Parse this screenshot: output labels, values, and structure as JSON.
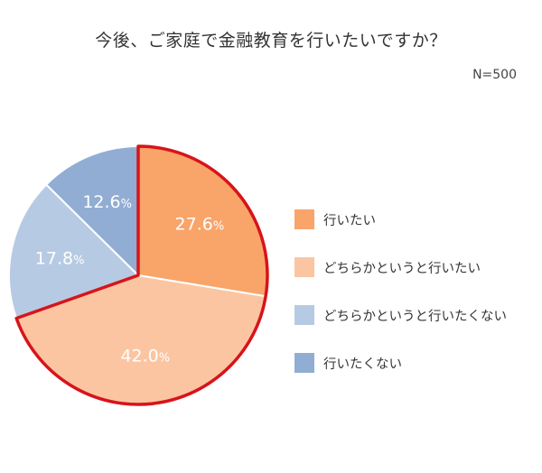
{
  "chart_data": {
    "type": "pie",
    "title": "今後、ご家庭で金融教育を行いたいですか？",
    "note": "N=500",
    "unit": "%",
    "slices": [
      {
        "label": "行いたい",
        "value": 27.6,
        "display": "27.6",
        "color": "#F9A469",
        "highlighted": true
      },
      {
        "label": "どちらかというと行いたい",
        "value": 42.0,
        "display": "42.0",
        "color": "#FCC5A2",
        "highlighted": true
      },
      {
        "label": "どちらかというと行いたくない",
        "value": 17.8,
        "display": "17.8",
        "color": "#B7CAE3",
        "highlighted": false
      },
      {
        "label": "行いたくない",
        "value": 12.6,
        "display": "12.6",
        "color": "#91ADD3",
        "highlighted": false
      }
    ],
    "start_angle": "12 o'clock",
    "direction": "clockwise",
    "legend_position": "right",
    "highlight_color": "#D7141A"
  }
}
